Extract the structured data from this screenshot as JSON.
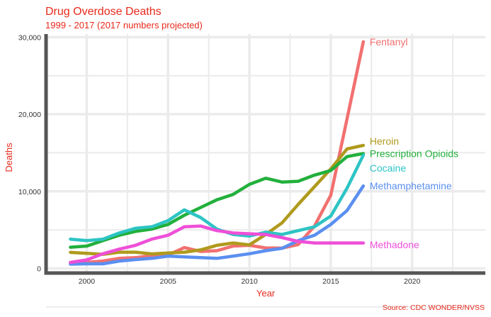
{
  "colors": {
    "title": "#e8291c",
    "axis_line": "#555555",
    "grid": "#ebebeb",
    "Fentanyl": "#f27070",
    "Heroin": "#b09a1d",
    "Prescription Opioids": "#22b03c",
    "Cocaine": "#2ec4c4",
    "Methamphetamine": "#5b8ff0",
    "Methadone": "#ee4fd8"
  },
  "chart_data": {
    "type": "line",
    "title": "Drug Overdose Deaths",
    "subtitle": "1999 - 2017 (2017 numbers projected)",
    "xlabel": "Year",
    "ylabel": "Deaths",
    "caption": "Source: CDC WONDER/NVSS",
    "xlim": [
      1997.5,
      2024.5
    ],
    "ylim": [
      -600,
      30400
    ],
    "x_ticks": [
      2000,
      2005,
      2010,
      2015,
      2020
    ],
    "y_ticks": [
      0,
      10000,
      20000,
      30000
    ],
    "y_tick_labels": [
      "0",
      "10,000",
      "20,000",
      "30,000"
    ],
    "grid": true,
    "legend": "direct labels at line ends",
    "x": [
      1999,
      2000,
      2001,
      2002,
      2003,
      2004,
      2005,
      2006,
      2007,
      2008,
      2009,
      2010,
      2011,
      2012,
      2013,
      2014,
      2015,
      2016,
      2017
    ],
    "series": [
      {
        "name": "Fentanyl",
        "values": [
          730,
          780,
          960,
          1300,
          1400,
          1660,
          1740,
          2700,
          2200,
          2300,
          2900,
          3000,
          2660,
          2630,
          3100,
          5500,
          9500,
          19400,
          29400
        ]
      },
      {
        "name": "Heroin",
        "values": [
          2080,
          1960,
          1830,
          2100,
          2100,
          1880,
          2000,
          2100,
          2400,
          3000,
          3300,
          3050,
          4400,
          5900,
          8300,
          10600,
          12900,
          15500,
          15960
        ]
      },
      {
        "name": "Prescription Opioids",
        "values": [
          2750,
          2900,
          3600,
          4300,
          4800,
          5100,
          5700,
          6900,
          7900,
          8900,
          9600,
          10900,
          11700,
          11200,
          11300,
          12100,
          12700,
          14500,
          14900
        ]
      },
      {
        "name": "Cocaine",
        "values": [
          3800,
          3600,
          3800,
          4600,
          5200,
          5400,
          6200,
          7600,
          6600,
          5100,
          4400,
          4200,
          4700,
          4400,
          4900,
          5400,
          6800,
          10400,
          14700
        ]
      },
      {
        "name": "Methamphetamine",
        "values": [
          550,
          600,
          600,
          950,
          1150,
          1300,
          1600,
          1500,
          1400,
          1300,
          1600,
          1900,
          2300,
          2600,
          3600,
          4300,
          5700,
          7500,
          10700
        ]
      },
      {
        "name": "Methadone",
        "values": [
          780,
          1100,
          1900,
          2500,
          3000,
          3800,
          4300,
          5400,
          5500,
          4900,
          4600,
          4500,
          4400,
          4000,
          3500,
          3300,
          3300,
          3300,
          3300
        ]
      }
    ]
  }
}
